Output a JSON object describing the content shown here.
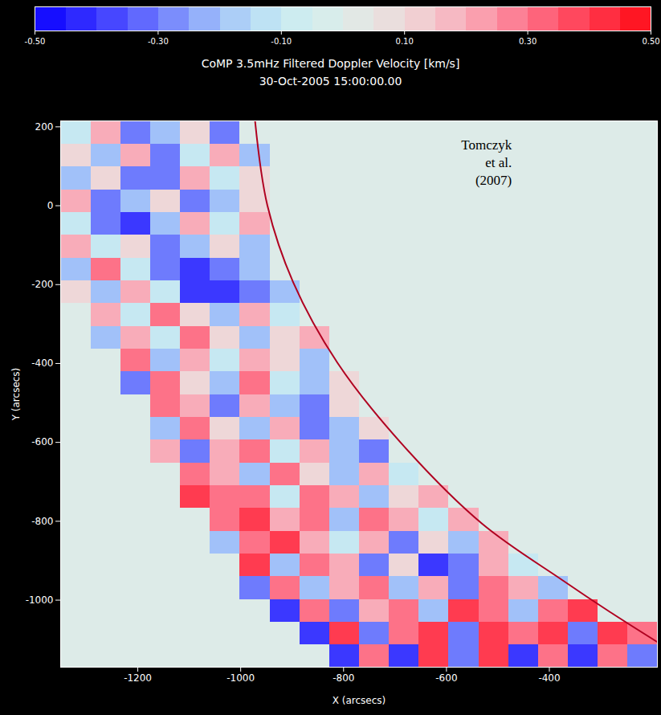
{
  "chart_data": {
    "type": "heatmap",
    "title": "CoMP 3.5mHz Filtered Doppler Velocity [km/s]",
    "subtitle": "30-Oct-2005 15:00:00.00",
    "x_label": "X (arcsecs)",
    "y_label": "Y (arcsecs)",
    "xlim": [
      -1350,
      -190
    ],
    "ylim": [
      -1170,
      215
    ],
    "xticks": [
      -1200,
      -1000,
      -800,
      -600,
      -400
    ],
    "yticks": [
      200,
      0,
      -200,
      -400,
      -600,
      -800,
      -1000
    ],
    "annotations": [
      {
        "text": "Tomczyk\net al.\n(2007)",
        "x": -473,
        "y": 175
      }
    ],
    "limb": {
      "x": [
        -972,
        -948,
        -898,
        -812,
        -688,
        -531,
        -375,
        -281,
        -183
      ],
      "y": [
        214,
        0,
        -194,
        -398,
        -602,
        -806,
        -949,
        -1031,
        -1112
      ]
    },
    "colorbar": {
      "range": [
        -0.5,
        0.5
      ],
      "ticks": [
        {
          "value": -0.5,
          "label": "-0.50"
        },
        {
          "value": -0.3,
          "label": "-0.30"
        },
        {
          "value": -0.1,
          "label": "-0.10"
        },
        {
          "value": 0.1,
          "label": "0.10"
        },
        {
          "value": 0.3,
          "label": "0.30"
        },
        {
          "value": 0.5,
          "label": "0.50"
        }
      ]
    },
    "values": [
      [
        -0.1,
        0.2,
        -0.3,
        -0.2,
        0.1,
        -0.3,
        0,
        0,
        0,
        0,
        0,
        0,
        0,
        0,
        0,
        0,
        0,
        0,
        0,
        0
      ],
      [
        0.1,
        -0.2,
        0.2,
        -0.3,
        -0.1,
        0.2,
        -0.2,
        0,
        0,
        0,
        0,
        0,
        0,
        0,
        0,
        0,
        0,
        0,
        0,
        0
      ],
      [
        -0.2,
        0.1,
        -0.3,
        -0.3,
        0.2,
        -0.1,
        0.1,
        0,
        0,
        0,
        0,
        0,
        0,
        0,
        0,
        0,
        0,
        0,
        0,
        0
      ],
      [
        0.2,
        -0.3,
        -0.2,
        0.1,
        -0.3,
        -0.2,
        0.1,
        0,
        0,
        0,
        0,
        0,
        0,
        0,
        0,
        0,
        0,
        0,
        0,
        0
      ],
      [
        -0.1,
        -0.3,
        -0.4,
        -0.2,
        0.2,
        -0.1,
        0.2,
        0,
        0,
        0,
        0,
        0,
        0,
        0,
        0,
        0,
        0,
        0,
        0,
        0
      ],
      [
        0.2,
        -0.1,
        0.1,
        -0.3,
        -0.2,
        0.1,
        -0.2,
        0,
        0,
        0,
        0,
        0,
        0,
        0,
        0,
        0,
        0,
        0,
        0,
        0
      ],
      [
        -0.2,
        0.3,
        -0.1,
        -0.3,
        -0.4,
        -0.3,
        -0.2,
        0,
        0,
        0,
        0,
        0,
        0,
        0,
        0,
        0,
        0,
        0,
        0,
        0
      ],
      [
        0.1,
        -0.2,
        0.2,
        -0.1,
        -0.4,
        -0.4,
        -0.3,
        -0.2,
        0,
        0,
        0,
        0,
        0,
        0,
        0,
        0,
        0,
        0,
        0,
        0
      ],
      [
        0,
        0.2,
        -0.1,
        0.3,
        0.1,
        -0.2,
        0.2,
        -0.1,
        0,
        0,
        0,
        0,
        0,
        0,
        0,
        0,
        0,
        0,
        0,
        0
      ],
      [
        0,
        -0.2,
        0.2,
        -0.1,
        0.3,
        0.1,
        -0.2,
        0.1,
        0.2,
        0,
        0,
        0,
        0,
        0,
        0,
        0,
        0,
        0,
        0,
        0
      ],
      [
        0,
        0,
        0.3,
        -0.2,
        0.2,
        -0.1,
        0.2,
        0.1,
        -0.2,
        0,
        0,
        0,
        0,
        0,
        0,
        0,
        0,
        0,
        0,
        0
      ],
      [
        0,
        0,
        -0.3,
        0.3,
        0.1,
        -0.2,
        0.3,
        -0.1,
        -0.2,
        0.1,
        0,
        0,
        0,
        0,
        0,
        0,
        0,
        0,
        0,
        0
      ],
      [
        0,
        0,
        0,
        0.3,
        0.2,
        -0.3,
        0.2,
        -0.2,
        -0.3,
        0.1,
        0,
        0,
        0,
        0,
        0,
        0,
        0,
        0,
        0,
        0
      ],
      [
        0,
        0,
        0,
        -0.2,
        0.3,
        0.1,
        -0.2,
        0.2,
        -0.3,
        -0.2,
        0.1,
        0,
        0,
        0,
        0,
        0,
        0,
        0,
        0,
        0
      ],
      [
        0,
        0,
        0,
        0.2,
        -0.3,
        0.2,
        0.3,
        -0.1,
        0.2,
        -0.2,
        -0.3,
        0,
        0,
        0,
        0,
        0,
        0,
        0,
        0,
        0
      ],
      [
        0,
        0,
        0,
        0,
        0.3,
        0.2,
        -0.2,
        0.3,
        0.1,
        -0.2,
        0.2,
        -0.1,
        0,
        0,
        0,
        0,
        0,
        0,
        0,
        0
      ],
      [
        0,
        0,
        0,
        0,
        0.4,
        0.3,
        0.3,
        -0.1,
        0.3,
        0.2,
        -0.2,
        0.1,
        0.2,
        0,
        0,
        0,
        0,
        0,
        0,
        0
      ],
      [
        0,
        0,
        0,
        0,
        0,
        0.3,
        0.4,
        0.2,
        0.3,
        -0.2,
        0.3,
        0.2,
        -0.1,
        0.2,
        0,
        0,
        0,
        0,
        0,
        0
      ],
      [
        0,
        0,
        0,
        0,
        0,
        -0.2,
        0.3,
        0.4,
        0.2,
        -0.1,
        0.2,
        -0.3,
        0.1,
        -0.2,
        0.2,
        0,
        0,
        0,
        0,
        0
      ],
      [
        0,
        0,
        0,
        0,
        0,
        0,
        0.4,
        -0.2,
        0.3,
        0.2,
        -0.3,
        0.1,
        -0.4,
        -0.3,
        0.2,
        -0.1,
        0,
        0,
        0,
        0
      ],
      [
        0,
        0,
        0,
        0,
        0,
        0,
        -0.3,
        0.3,
        -0.2,
        0.2,
        0.3,
        -0.2,
        0.2,
        -0.3,
        0.3,
        0.2,
        -0.2,
        0,
        0,
        0
      ],
      [
        0,
        0,
        0,
        0,
        0,
        0,
        0,
        -0.4,
        0.3,
        -0.3,
        0.2,
        0.3,
        -0.2,
        0.4,
        0.3,
        -0.2,
        0.3,
        0.4,
        0,
        0
      ],
      [
        0,
        0,
        0,
        0,
        0,
        0,
        0,
        0,
        -0.4,
        0.4,
        -0.3,
        0.3,
        0.4,
        -0.3,
        0.4,
        0.3,
        0.4,
        -0.3,
        0.4,
        0.3
      ],
      [
        0,
        0,
        0,
        0,
        0,
        0,
        0,
        0,
        0,
        -0.4,
        0.3,
        -0.4,
        0.4,
        -0.3,
        0.4,
        -0.4,
        0.3,
        -0.4,
        0.3,
        -0.3
      ]
    ]
  }
}
